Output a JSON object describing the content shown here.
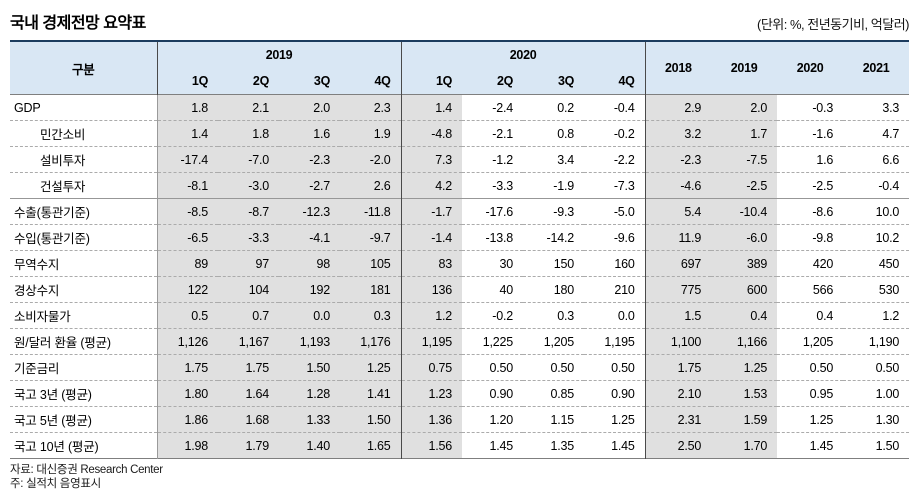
{
  "title": "국내 경제전망 요약표",
  "unit_label": "(단위: %, 전년동기비, 억달러)",
  "source_note": "자료: 대신증권 Research Center",
  "shading_note": "주: 실적치 음영표시",
  "colors": {
    "header_bg": "#d9e7f4",
    "actuals_shading": "#e0e0e0",
    "table_top_border": "#1c3c5e"
  },
  "table": {
    "corner_label": "구분",
    "year_groups": [
      {
        "label": "2019",
        "quarters": [
          "1Q",
          "2Q",
          "3Q",
          "4Q"
        ]
      },
      {
        "label": "2020",
        "quarters": [
          "1Q",
          "2Q",
          "3Q",
          "4Q"
        ]
      }
    ],
    "annual_columns": [
      "2018",
      "2019",
      "2020",
      "2021"
    ],
    "shaded_column_indexes": [
      0,
      1,
      2,
      3,
      4,
      8,
      9
    ],
    "rows": [
      {
        "label": "GDP",
        "indent": false,
        "group_start": false,
        "values": [
          "1.8",
          "2.1",
          "2.0",
          "2.3",
          "1.4",
          "-2.4",
          "0.2",
          "-0.4",
          "2.9",
          "2.0",
          "-0.3",
          "3.3"
        ]
      },
      {
        "label": "민간소비",
        "indent": true,
        "group_start": false,
        "values": [
          "1.4",
          "1.8",
          "1.6",
          "1.9",
          "-4.8",
          "-2.1",
          "0.8",
          "-0.2",
          "3.2",
          "1.7",
          "-1.6",
          "4.7"
        ]
      },
      {
        "label": "설비투자",
        "indent": true,
        "group_start": false,
        "values": [
          "-17.4",
          "-7.0",
          "-2.3",
          "-2.0",
          "7.3",
          "-1.2",
          "3.4",
          "-2.2",
          "-2.3",
          "-7.5",
          "1.6",
          "6.6"
        ]
      },
      {
        "label": "건설투자",
        "indent": true,
        "group_start": false,
        "values": [
          "-8.1",
          "-3.0",
          "-2.7",
          "2.6",
          "4.2",
          "-3.3",
          "-1.9",
          "-7.3",
          "-4.6",
          "-2.5",
          "-2.5",
          "-0.4"
        ]
      },
      {
        "label": "수출(통관기준)",
        "indent": false,
        "group_start": true,
        "values": [
          "-8.5",
          "-8.7",
          "-12.3",
          "-11.8",
          "-1.7",
          "-17.6",
          "-9.3",
          "-5.0",
          "5.4",
          "-10.4",
          "-8.6",
          "10.0"
        ]
      },
      {
        "label": "수입(통관기준)",
        "indent": false,
        "group_start": false,
        "values": [
          "-6.5",
          "-3.3",
          "-4.1",
          "-9.7",
          "-1.4",
          "-13.8",
          "-14.2",
          "-9.6",
          "11.9",
          "-6.0",
          "-9.8",
          "10.2"
        ]
      },
      {
        "label": "무역수지",
        "indent": false,
        "group_start": false,
        "values": [
          "89",
          "97",
          "98",
          "105",
          "83",
          "30",
          "150",
          "160",
          "697",
          "389",
          "420",
          "450"
        ]
      },
      {
        "label": "경상수지",
        "indent": false,
        "group_start": false,
        "values": [
          "122",
          "104",
          "192",
          "181",
          "136",
          "40",
          "180",
          "210",
          "775",
          "600",
          "566",
          "530"
        ]
      },
      {
        "label": "소비자물가",
        "indent": false,
        "group_start": false,
        "values": [
          "0.5",
          "0.7",
          "0.0",
          "0.3",
          "1.2",
          "-0.2",
          "0.3",
          "0.0",
          "1.5",
          "0.4",
          "0.4",
          "1.2"
        ]
      },
      {
        "label": "원/달러 환율 (평균)",
        "indent": false,
        "group_start": false,
        "values": [
          "1,126",
          "1,167",
          "1,193",
          "1,176",
          "1,195",
          "1,225",
          "1,205",
          "1,195",
          "1,100",
          "1,166",
          "1,205",
          "1,190"
        ]
      },
      {
        "label": "기준금리",
        "indent": false,
        "group_start": false,
        "values": [
          "1.75",
          "1.75",
          "1.50",
          "1.25",
          "0.75",
          "0.50",
          "0.50",
          "0.50",
          "1.75",
          "1.25",
          "0.50",
          "0.50"
        ]
      },
      {
        "label": "국고 3년 (평균)",
        "indent": false,
        "group_start": false,
        "values": [
          "1.80",
          "1.64",
          "1.28",
          "1.41",
          "1.23",
          "0.90",
          "0.85",
          "0.90",
          "2.10",
          "1.53",
          "0.95",
          "1.00"
        ]
      },
      {
        "label": "국고 5년 (평균)",
        "indent": false,
        "group_start": false,
        "values": [
          "1.86",
          "1.68",
          "1.33",
          "1.50",
          "1.36",
          "1.20",
          "1.15",
          "1.25",
          "2.31",
          "1.59",
          "1.25",
          "1.30"
        ]
      },
      {
        "label": "국고 10년 (평균)",
        "indent": false,
        "group_start": false,
        "values": [
          "1.98",
          "1.79",
          "1.40",
          "1.65",
          "1.56",
          "1.45",
          "1.35",
          "1.45",
          "2.50",
          "1.70",
          "1.45",
          "1.50"
        ]
      }
    ]
  }
}
